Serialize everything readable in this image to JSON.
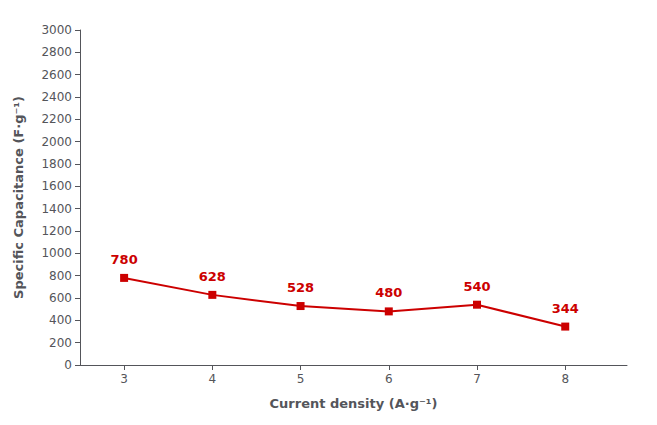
{
  "chart_data": {
    "type": "line",
    "x": [
      3,
      4,
      5,
      6,
      7,
      8
    ],
    "values": [
      780,
      628,
      528,
      480,
      540,
      344
    ],
    "color": "#CC0000",
    "marker": "square",
    "data_labels": true,
    "grid": false,
    "xlabel": "Current density (A·g⁻¹)",
    "ylabel": "Specific Capacitance (F·g⁻¹)",
    "xlim": [
      2.5,
      8.7
    ],
    "ylim": [
      0,
      3000
    ],
    "xticks": [
      3,
      4,
      5,
      6,
      7,
      8
    ],
    "yticks": [
      0,
      200,
      400,
      600,
      800,
      1000,
      1200,
      1400,
      1600,
      1800,
      2000,
      2200,
      2400,
      2600,
      2800,
      3000
    ]
  }
}
